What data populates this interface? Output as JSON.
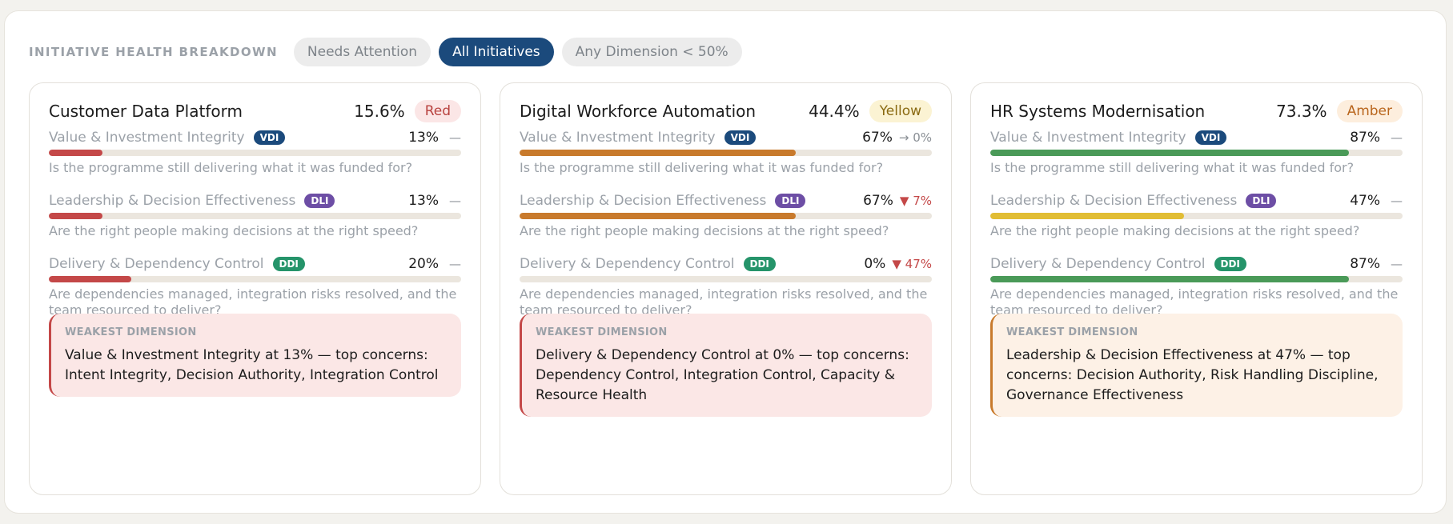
{
  "header": {
    "title": "INITIATIVE HEALTH BREAKDOWN",
    "filters": [
      {
        "label": "Needs Attention",
        "active": false
      },
      {
        "label": "All Initiatives",
        "active": true
      },
      {
        "label": "Any Dimension < 50%",
        "active": false
      }
    ]
  },
  "colors": {
    "red": "#c44848",
    "orange": "#c87a2c",
    "green": "#4a9a58",
    "yellow": "#e1bd34",
    "vdi": "#1b4a7c",
    "dli": "#6d4ea5",
    "ddi": "#25946a",
    "delta_down": "#c44848",
    "delta_flat": "#8a8f95"
  },
  "cards": [
    {
      "name": "Customer Data Platform",
      "score": "15.6%",
      "rag": "Red",
      "rag_bg": "#fbe6e6",
      "rag_color": "#b8423f",
      "dimensions": [
        {
          "label": "Value & Investment Integrity",
          "tag": "VDI",
          "tag_color": "#1b4a7c",
          "pct": "13%",
          "value": 13,
          "bar_color": "#c44848",
          "delta": "—",
          "delta_color": "#8a8f95",
          "question": "Is the programme still delivering what it was funded for?"
        },
        {
          "label": "Leadership & Decision Effectiveness",
          "tag": "DLI",
          "tag_color": "#6d4ea5",
          "pct": "13%",
          "value": 13,
          "bar_color": "#c44848",
          "delta": "—",
          "delta_color": "#8a8f95",
          "question": "Are the right people making decisions at the right speed?"
        },
        {
          "label": "Delivery & Dependency Control",
          "tag": "DDI",
          "tag_color": "#25946a",
          "pct": "20%",
          "value": 20,
          "bar_color": "#c44848",
          "delta": "—",
          "delta_color": "#8a8f95",
          "question": "Are dependencies managed, integration risks resolved, and the team resourced to deliver?"
        }
      ],
      "weakest": {
        "title": "WEAKEST DIMENSION",
        "text": "Value & Investment Integrity at 13% — top concerns: Intent Integrity, Decision Authority, Integration Control",
        "bg": "#fbe7e6",
        "border": "#c44848"
      }
    },
    {
      "name": "Digital Workforce Automation",
      "score": "44.4%",
      "rag": "Yellow",
      "rag_bg": "#fbf3d3",
      "rag_color": "#8a6a12",
      "dimensions": [
        {
          "label": "Value & Investment Integrity",
          "tag": "VDI",
          "tag_color": "#1b4a7c",
          "pct": "67%",
          "value": 67,
          "bar_color": "#c87a2c",
          "delta": "→ 0%",
          "delta_color": "#8a8f95",
          "question": "Is the programme still delivering what it was funded for?"
        },
        {
          "label": "Leadership & Decision Effectiveness",
          "tag": "DLI",
          "tag_color": "#6d4ea5",
          "pct": "67%",
          "value": 67,
          "bar_color": "#c87a2c",
          "delta": "▼ 7%",
          "delta_color": "#c44848",
          "question": "Are the right people making decisions at the right speed?"
        },
        {
          "label": "Delivery & Dependency Control",
          "tag": "DDI",
          "tag_color": "#25946a",
          "pct": "0%",
          "value": 0,
          "bar_color": "#c44848",
          "delta": "▼ 47%",
          "delta_color": "#c44848",
          "question": "Are dependencies managed, integration risks resolved, and the team resourced to deliver?"
        }
      ],
      "weakest": {
        "title": "WEAKEST DIMENSION",
        "text": "Delivery & Dependency Control at 0% — top concerns: Dependency Control, Integration Control, Capacity & Resource Health",
        "bg": "#fbe7e6",
        "border": "#c44848"
      }
    },
    {
      "name": "HR Systems Modernisation",
      "score": "73.3%",
      "rag": "Amber",
      "rag_bg": "#fdeedd",
      "rag_color": "#b9661d",
      "dimensions": [
        {
          "label": "Value & Investment Integrity",
          "tag": "VDI",
          "tag_color": "#1b4a7c",
          "pct": "87%",
          "value": 87,
          "bar_color": "#4a9a58",
          "delta": "—",
          "delta_color": "#8a8f95",
          "question": "Is the programme still delivering what it was funded for?"
        },
        {
          "label": "Leadership & Decision Effectiveness",
          "tag": "DLI",
          "tag_color": "#6d4ea5",
          "pct": "47%",
          "value": 47,
          "bar_color": "#e1bd34",
          "delta": "—",
          "delta_color": "#8a8f95",
          "question": "Are the right people making decisions at the right speed?"
        },
        {
          "label": "Delivery & Dependency Control",
          "tag": "DDI",
          "tag_color": "#25946a",
          "pct": "87%",
          "value": 87,
          "bar_color": "#4a9a58",
          "delta": "—",
          "delta_color": "#8a8f95",
          "question": "Are dependencies managed, integration risks resolved, and the team resourced to deliver?"
        }
      ],
      "weakest": {
        "title": "WEAKEST DIMENSION",
        "text": "Leadership & Decision Effectiveness at 47% — top concerns: Decision Authority, Risk Handling Discipline, Governance Effectiveness",
        "bg": "#fdf1e6",
        "border": "#c87a2c"
      }
    }
  ]
}
